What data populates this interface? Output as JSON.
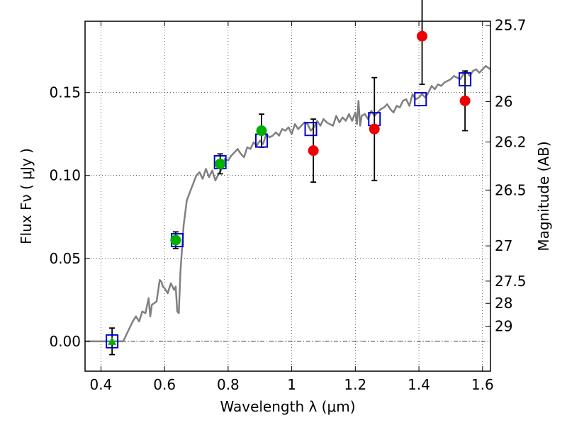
{
  "chart_data": {
    "type": "scatter",
    "title": "",
    "xlabel": "Wavelength  λ (μm)",
    "ylabel": "Flux  Fν  ( μJy )",
    "ylabel_right": "Magnitude (AB)",
    "xlim": [
      0.35,
      1.625
    ],
    "ylim": [
      -0.018,
      0.193
    ],
    "grid": true,
    "x_ticks": [
      {
        "value": 0.4,
        "label": "0.4"
      },
      {
        "value": 0.6,
        "label": "0.6"
      },
      {
        "value": 0.8,
        "label": "0.8"
      },
      {
        "value": 1.0,
        "label": "1"
      },
      {
        "value": 1.2,
        "label": "1.2"
      },
      {
        "value": 1.4,
        "label": "1.4"
      },
      {
        "value": 1.6,
        "label": "1.6"
      }
    ],
    "y_ticks": [
      {
        "value": 0.0,
        "label": "0.00"
      },
      {
        "value": 0.05,
        "label": "0.05"
      },
      {
        "value": 0.1,
        "label": "0.10"
      },
      {
        "value": 0.15,
        "label": "0.15"
      }
    ],
    "y_right_ticks": [
      {
        "mag": 25.7,
        "label": "25.7"
      },
      {
        "mag": 26.0,
        "label": "26"
      },
      {
        "mag": 26.2,
        "label": "26.2"
      },
      {
        "mag": 26.5,
        "label": "26.5"
      },
      {
        "mag": 27.0,
        "label": "27"
      },
      {
        "mag": 27.5,
        "label": "27.5"
      },
      {
        "mag": 28.0,
        "label": "28"
      },
      {
        "mag": 29.0,
        "label": "29"
      }
    ],
    "colors": {
      "sed": "#808080",
      "model_box": "#0000cc",
      "detection": "#00b000",
      "low_sn": "#ee0000",
      "errorbar": "#000000"
    },
    "sed_model": {
      "x": [
        0.35,
        0.45,
        0.47,
        0.48,
        0.5,
        0.51,
        0.52,
        0.53,
        0.54,
        0.55,
        0.555,
        0.56,
        0.575,
        0.585,
        0.59,
        0.595,
        0.6,
        0.61,
        0.62,
        0.63,
        0.635,
        0.64,
        0.645,
        0.65,
        0.66,
        0.67,
        0.68,
        0.69,
        0.7,
        0.71,
        0.72,
        0.73,
        0.74,
        0.75,
        0.76,
        0.77,
        0.78,
        0.79,
        0.8,
        0.81,
        0.82,
        0.83,
        0.84,
        0.85,
        0.86,
        0.87,
        0.88,
        0.89,
        0.9,
        0.91,
        0.92,
        0.93,
        0.94,
        0.95,
        0.96,
        0.97,
        0.98,
        0.99,
        1.0,
        1.01,
        1.02,
        1.03,
        1.04,
        1.05,
        1.06,
        1.07,
        1.08,
        1.09,
        1.1,
        1.11,
        1.12,
        1.13,
        1.14,
        1.15,
        1.16,
        1.17,
        1.18,
        1.19,
        1.2,
        1.205,
        1.21,
        1.215,
        1.22,
        1.23,
        1.24,
        1.25,
        1.26,
        1.27,
        1.28,
        1.29,
        1.3,
        1.31,
        1.32,
        1.33,
        1.34,
        1.35,
        1.36,
        1.37,
        1.38,
        1.39,
        1.4,
        1.41,
        1.42,
        1.43,
        1.44,
        1.45,
        1.46,
        1.47,
        1.48,
        1.49,
        1.5,
        1.51,
        1.52,
        1.53,
        1.54,
        1.55,
        1.56,
        1.57,
        1.58,
        1.59,
        1.6,
        1.61,
        1.625
      ],
      "y": [
        0.0,
        0.0,
        0.0,
        0.004,
        0.012,
        0.015,
        0.012,
        0.018,
        0.017,
        0.026,
        0.015,
        0.022,
        0.024,
        0.037,
        0.036,
        0.033,
        0.032,
        0.029,
        0.035,
        0.031,
        0.033,
        0.018,
        0.017,
        0.042,
        0.07,
        0.085,
        0.09,
        0.095,
        0.1,
        0.102,
        0.098,
        0.104,
        0.099,
        0.103,
        0.097,
        0.101,
        0.104,
        0.11,
        0.109,
        0.112,
        0.114,
        0.116,
        0.113,
        0.111,
        0.117,
        0.116,
        0.12,
        0.118,
        0.121,
        0.119,
        0.125,
        0.123,
        0.124,
        0.126,
        0.124,
        0.128,
        0.127,
        0.129,
        0.125,
        0.131,
        0.128,
        0.13,
        0.132,
        0.131,
        0.127,
        0.129,
        0.133,
        0.13,
        0.134,
        0.132,
        0.131,
        0.13,
        0.136,
        0.132,
        0.135,
        0.133,
        0.137,
        0.133,
        0.138,
        0.131,
        0.145,
        0.13,
        0.136,
        0.137,
        0.134,
        0.139,
        0.136,
        0.138,
        0.14,
        0.141,
        0.143,
        0.14,
        0.138,
        0.142,
        0.141,
        0.145,
        0.146,
        0.142,
        0.149,
        0.146,
        0.147,
        0.149,
        0.147,
        0.15,
        0.154,
        0.152,
        0.155,
        0.154,
        0.156,
        0.157,
        0.158,
        0.16,
        0.159,
        0.158,
        0.161,
        0.163,
        0.16,
        0.163,
        0.164,
        0.162,
        0.164,
        0.166,
        0.164
      ]
    },
    "model_photometry": {
      "x": [
        0.435,
        0.64,
        0.775,
        0.905,
        1.06,
        1.26,
        1.405,
        1.545
      ],
      "y": [
        0.0,
        0.061,
        0.108,
        0.121,
        0.128,
        0.134,
        0.146,
        0.158
      ]
    },
    "detections": {
      "x": [
        0.635,
        0.775,
        0.905
      ],
      "y": [
        0.061,
        0.107,
        0.127
      ],
      "err": [
        0.005,
        0.006,
        0.01
      ]
    },
    "upper_limit_marker": {
      "x": 0.435,
      "y": 0.0,
      "err": 0.008
    },
    "low_sn_points": {
      "x": [
        1.068,
        1.26,
        1.41,
        1.545
      ],
      "y": [
        0.115,
        0.128,
        0.184,
        0.145
      ],
      "err": [
        0.019,
        0.031,
        0.029,
        0.018
      ]
    }
  }
}
